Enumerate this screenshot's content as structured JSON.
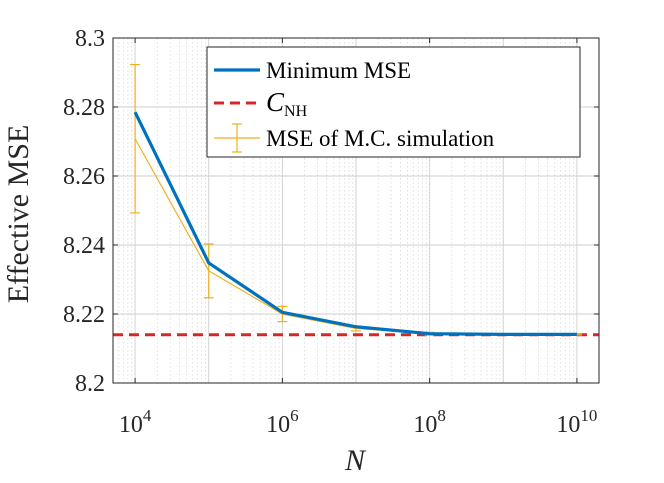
{
  "chart_data": {
    "type": "line",
    "title": "",
    "xlabel": "N",
    "ylabel": "Effective MSE",
    "xscale": "log",
    "xlim": [
      10000,
      10000000000
    ],
    "ylim": [
      8.2,
      8.3
    ],
    "xticks": [
      {
        "value": 10000,
        "base": "10",
        "exp": "4"
      },
      {
        "value": 1000000,
        "base": "10",
        "exp": "6"
      },
      {
        "value": 100000000,
        "base": "10",
        "exp": "8"
      },
      {
        "value": 10000000000,
        "base": "10",
        "exp": "10"
      }
    ],
    "yticks": [
      "8.2",
      "8.22",
      "8.24",
      "8.26",
      "8.28",
      "8.3"
    ],
    "grid": true,
    "legend_position": "top-right",
    "x": [
      10000,
      100000,
      1000000,
      10000000,
      100000000,
      1000000000,
      10000000000
    ],
    "series": [
      {
        "name": "Minimum MSE",
        "color": "#0072BD",
        "style": "solid",
        "values": [
          8.2785,
          8.2348,
          8.2205,
          8.2163,
          8.2143,
          8.2141,
          8.2141
        ]
      },
      {
        "name": "C",
        "name_subscript": "NH",
        "color": "#D62728",
        "style": "dashed",
        "constant": 8.214
      },
      {
        "name": "MSE of M.C. simulation",
        "color": "#EDB120",
        "style": "errorbar",
        "values": [
          8.2708,
          8.2325,
          8.22,
          8.2158,
          8.2143,
          8.214,
          8.2141
        ],
        "error": [
          0.0215,
          0.0078,
          0.0022,
          0.0007,
          0.0004,
          0.0002,
          0.0002
        ]
      }
    ]
  }
}
